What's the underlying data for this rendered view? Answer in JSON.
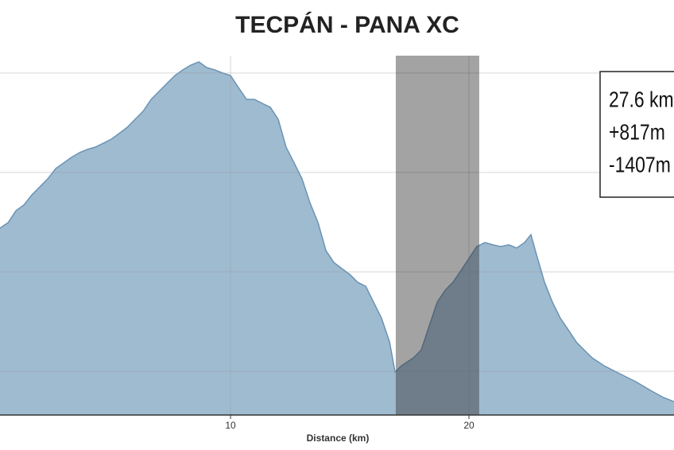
{
  "chart_data": {
    "type": "area",
    "title": "TECPÁN - PANA XC",
    "x_label": "Distance (km)",
    "x": [
      0.33,
      0.67,
      1.0,
      1.33,
      1.67,
      2.0,
      2.33,
      2.67,
      3.0,
      3.33,
      3.67,
      4.0,
      4.33,
      4.67,
      5.0,
      5.33,
      5.67,
      6.0,
      6.33,
      6.67,
      7.0,
      7.33,
      7.67,
      8.0,
      8.33,
      8.67,
      9.0,
      9.33,
      9.67,
      10.0,
      10.33,
      10.67,
      11.0,
      11.33,
      11.67,
      12.0,
      12.33,
      12.67,
      13.0,
      13.33,
      13.67,
      14.0,
      14.33,
      14.67,
      15.0,
      15.33,
      15.67,
      16.0,
      16.33,
      16.67,
      16.9,
      17.17,
      17.67,
      18.0,
      18.33,
      18.67,
      19.0,
      19.33,
      19.67,
      20.0,
      20.33,
      20.67,
      21.0,
      21.33,
      21.67,
      22.0,
      22.33,
      22.6,
      22.83,
      23.17,
      23.5,
      23.83,
      24.17,
      24.5,
      24.83,
      25.17,
      25.67,
      26.33,
      27.0,
      27.67,
      28.17,
      28.6
    ],
    "values": [
      2176,
      2198,
      2246,
      2269,
      2310,
      2342,
      2374,
      2416,
      2438,
      2461,
      2480,
      2493,
      2502,
      2518,
      2534,
      2557,
      2582,
      2614,
      2646,
      2694,
      2726,
      2758,
      2790,
      2813,
      2832,
      2845,
      2822,
      2813,
      2800,
      2790,
      2742,
      2694,
      2694,
      2678,
      2662,
      2614,
      2502,
      2438,
      2374,
      2278,
      2198,
      2086,
      2038,
      2013,
      1990,
      1958,
      1942,
      1878,
      1814,
      1718,
      1597,
      1622,
      1654,
      1686,
      1782,
      1878,
      1926,
      1958,
      2006,
      2054,
      2102,
      2118,
      2109,
      2102,
      2109,
      2096,
      2118,
      2150,
      2070,
      1958,
      1878,
      1814,
      1766,
      1718,
      1686,
      1654,
      1622,
      1590,
      1558,
      1520,
      1494,
      1478
    ],
    "color": "#9fbbd0",
    "line_color": "#6a93b5",
    "highlight": [
      16.93,
      20.43
    ],
    "xlim": [
      0.33,
      28.6
    ],
    "ylim": [
      1424,
      2870
    ],
    "xticks": [
      10,
      20
    ],
    "yticks": [
      1600,
      2000,
      2400,
      2800
    ],
    "grid": true,
    "annotation": [
      "27.6 km",
      "+817m",
      "-1407m"
    ]
  }
}
